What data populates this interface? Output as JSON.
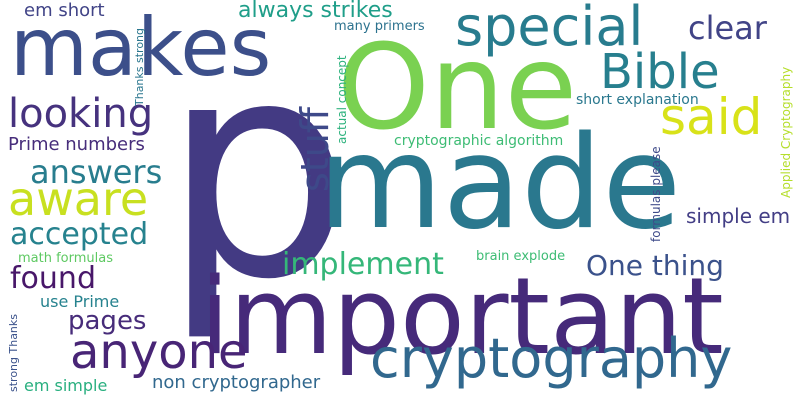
{
  "words": [
    {
      "id": "p",
      "text": "p",
      "color": "#433a83",
      "orientation": "horizontal"
    },
    {
      "id": "made",
      "text": "made",
      "color": "#2a788e",
      "orientation": "horizontal"
    },
    {
      "id": "important",
      "text": "important",
      "color": "#462a7a",
      "orientation": "horizontal"
    },
    {
      "id": "one-big",
      "text": "One",
      "color": "#7ad151",
      "orientation": "horizontal"
    },
    {
      "id": "makes",
      "text": "makes",
      "color": "#3c4f8a",
      "orientation": "horizontal"
    },
    {
      "id": "cryptography",
      "text": "cryptography",
      "color": "#31688e",
      "orientation": "horizontal"
    },
    {
      "id": "special",
      "text": "special",
      "color": "#287c8e",
      "orientation": "horizontal"
    },
    {
      "id": "anyone",
      "text": "anyone",
      "color": "#482576",
      "orientation": "horizontal"
    },
    {
      "id": "bible",
      "text": "Bible",
      "color": "#277f8e",
      "orientation": "horizontal"
    },
    {
      "id": "said",
      "text": "said",
      "color": "#d8e219",
      "orientation": "horizontal"
    },
    {
      "id": "aware",
      "text": "aware",
      "color": "#c8e020",
      "orientation": "horizontal"
    },
    {
      "id": "looking",
      "text": "looking",
      "color": "#46327e",
      "orientation": "horizontal"
    },
    {
      "id": "stuff",
      "text": "stuff",
      "color": "#3e4989",
      "orientation": "vertical"
    },
    {
      "id": "answers",
      "text": "answers",
      "color": "#287d8e",
      "orientation": "horizontal"
    },
    {
      "id": "clear",
      "text": "clear",
      "color": "#414487",
      "orientation": "horizontal"
    },
    {
      "id": "accepted",
      "text": "accepted",
      "color": "#26828e",
      "orientation": "horizontal"
    },
    {
      "id": "implement",
      "text": "implement",
      "color": "#35b779",
      "orientation": "horizontal"
    },
    {
      "id": "one-thing",
      "text": "One thing",
      "color": "#3b528b",
      "orientation": "horizontal"
    },
    {
      "id": "found",
      "text": "found",
      "color": "#481769",
      "orientation": "horizontal"
    },
    {
      "id": "always-strikes",
      "text": "always strikes",
      "color": "#1f9e89",
      "orientation": "horizontal"
    },
    {
      "id": "pages",
      "text": "pages",
      "color": "#472c7a",
      "orientation": "horizontal"
    },
    {
      "id": "prime-numbers",
      "text": "Prime numbers",
      "color": "#472d7b",
      "orientation": "horizontal"
    },
    {
      "id": "simple-em-right",
      "text": "simple em",
      "color": "#433e85",
      "orientation": "horizontal"
    },
    {
      "id": "em-short",
      "text": "em short",
      "color": "#414487",
      "orientation": "horizontal"
    },
    {
      "id": "non-cryptographer",
      "text": "non cryptographer",
      "color": "#31688e",
      "orientation": "horizontal"
    },
    {
      "id": "use-prime",
      "text": "use Prime",
      "color": "#26828e",
      "orientation": "horizontal"
    },
    {
      "id": "em-simple",
      "text": "em simple",
      "color": "#29af7f",
      "orientation": "horizontal"
    },
    {
      "id": "math-formulas",
      "text": "math formulas",
      "color": "#5ec962",
      "orientation": "horizontal"
    },
    {
      "id": "cryptographic-algorithm",
      "text": "cryptographic algorithm",
      "color": "#3dbc74",
      "orientation": "horizontal"
    },
    {
      "id": "short-explanation",
      "text": "short explanation",
      "color": "#2a788e",
      "orientation": "horizontal"
    },
    {
      "id": "brain-explode",
      "text": "brain explode",
      "color": "#3dbc74",
      "orientation": "horizontal"
    },
    {
      "id": "many-primers",
      "text": "many primers",
      "color": "#2c728e",
      "orientation": "horizontal"
    },
    {
      "id": "thanks-strong-top",
      "text": "Thanks strong",
      "color": "#2a768e",
      "orientation": "vertical"
    },
    {
      "id": "actual-concept",
      "text": "actual concept",
      "color": "#2db27d",
      "orientation": "vertical"
    },
    {
      "id": "formulas-please",
      "text": "formulas please",
      "color": "#3e4a89",
      "orientation": "vertical"
    },
    {
      "id": "applied-cryptography",
      "text": "Applied Cryptography",
      "color": "#b5de2b",
      "orientation": "vertical"
    },
    {
      "id": "strong-thanks-bottom",
      "text": "strong Thanks",
      "color": "#3b528b",
      "orientation": "vertical"
    }
  ]
}
